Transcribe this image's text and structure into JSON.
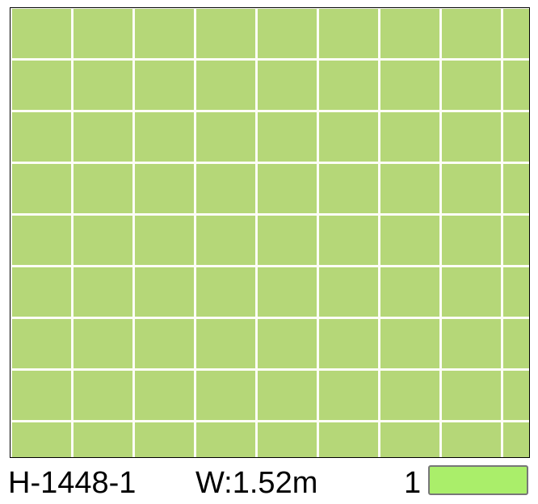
{
  "product": {
    "code": "H-1448-1",
    "width": "W:1.52m",
    "color_index": "1"
  },
  "colors": {
    "tile": "#b5d778",
    "grout": "#fdfdf6",
    "swatch": "#aaee6a"
  }
}
